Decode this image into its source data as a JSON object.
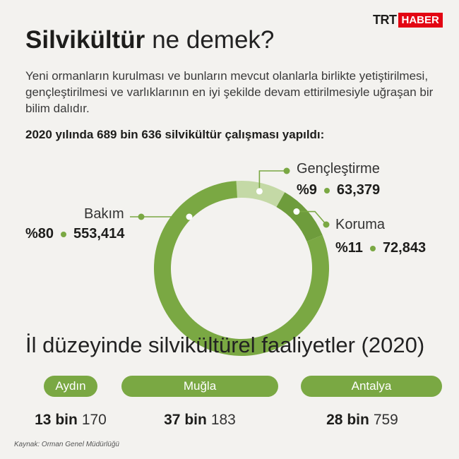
{
  "brand": {
    "trt": "TRT",
    "haber": "HABER"
  },
  "title": {
    "strong": "Silvikültür",
    "light": "ne demek?"
  },
  "description": "Yeni ormanların kurulması ve bunların mevcut olanlarla birlikte yetiştirilmesi, gençleştirilmesi ve varlıklarının en iyi şekilde devam ettirilmesiyle uğraşan bir bilim dalıdır.",
  "subheading": "2020 yılında 689 bin 636 silvikültür çalışması yapıldı:",
  "chart_data": {
    "type": "pie",
    "donut": true,
    "categories": [
      "Bakım",
      "Gençleştirme",
      "Koruma"
    ],
    "values": [
      553414,
      63379,
      72843
    ],
    "percent_labels": [
      "%80",
      "%9",
      "%11"
    ],
    "value_labels": [
      "553,414",
      "63,379",
      "72,843"
    ],
    "colors": [
      "#7aa843",
      "#c4d9a6",
      "#6e9c3c"
    ]
  },
  "section_title": "İl düzeyinde silvikültürel faaliyetler (2020)",
  "provinces": [
    {
      "name": "Aydın",
      "bold": "13 bin",
      "light": "170"
    },
    {
      "name": "Muğla",
      "bold": "37 bin",
      "light": "183"
    },
    {
      "name": "Antalya",
      "bold": "28 bin",
      "light": "759"
    }
  ],
  "source": "Kaynak: Orman Genel Müdürlüğü"
}
